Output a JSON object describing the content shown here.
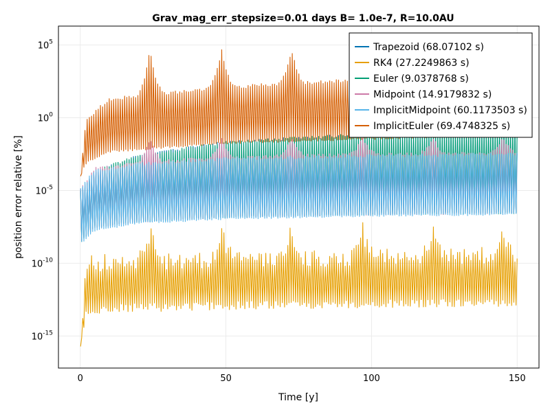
{
  "chart_data": {
    "type": "line",
    "title": "Grav_mag_err_stepsize=0.01 days B= 1.0e-7, R=10.0AU",
    "xlabel": "Time [y]",
    "ylabel": "position error relative [%]",
    "xlim": [
      -7.5,
      157.5
    ],
    "ylim_log10": [
      -17.2,
      6.3
    ],
    "yscale": "log",
    "grid": true,
    "legend_position": "top-right",
    "x_ticks": [
      {
        "value": 0,
        "label": "0"
      },
      {
        "value": 50,
        "label": "50"
      },
      {
        "value": 100,
        "label": "100"
      },
      {
        "value": 150,
        "label": "150"
      }
    ],
    "y_ticks": [
      {
        "exp": 5,
        "base": "10",
        "sup": "5"
      },
      {
        "exp": 0,
        "base": "10",
        "sup": "0"
      },
      {
        "exp": -5,
        "base": "10",
        "sup": "-5"
      },
      {
        "exp": -10,
        "base": "10",
        "sup": "-10"
      },
      {
        "exp": -15,
        "base": "10",
        "sup": "-15"
      }
    ],
    "series": [
      {
        "name": "Trapezoid (68.07102 s)",
        "color": "#0072B2",
        "envelope_x": [
          0.1,
          5,
          20,
          50,
          100,
          150
        ],
        "upper_log10": [
          -5,
          -3.6,
          -2.5,
          -1.6,
          -1.0,
          -0.7
        ],
        "lower_log10": [
          -8.6,
          -7.6,
          -7.2,
          -6.9,
          -6.7,
          -6.6
        ]
      },
      {
        "name": "RK4 (27.2249863 s)",
        "color": "#E69F00",
        "envelope_x": [
          0.1,
          2,
          10,
          50,
          100,
          150
        ],
        "upper_log10": [
          -15.5,
          -9.5,
          -9.3,
          -9.2,
          -9.0,
          -8.8
        ],
        "lower_log10": [
          -16,
          -13.8,
          -13.4,
          -13.2,
          -13.1,
          -13.0
        ],
        "peak_x": [
          24,
          48.5,
          72.5,
          97,
          121,
          145
        ],
        "peak_log10": -7.2
      },
      {
        "name": "Euler (9.0378768 s)",
        "color": "#009E73",
        "envelope_x": [
          0.1,
          5,
          20,
          50,
          100,
          150
        ],
        "upper_log10": [
          -5,
          -3.6,
          -2.5,
          -1.6,
          -1.0,
          -0.7
        ],
        "lower_log10": [
          -8.6,
          -7.6,
          -7.2,
          -6.9,
          -6.7,
          -6.6
        ]
      },
      {
        "name": "Midpoint (14.9179832 s)",
        "color": "#CC79A7",
        "envelope_x": [
          0.1,
          5,
          20,
          50,
          100,
          150
        ],
        "upper_log10": [
          -4.8,
          -3.4,
          -3.0,
          -2.6,
          -2.4,
          -2.3
        ],
        "lower_log10": [
          -8.6,
          -7.6,
          -7.2,
          -6.9,
          -6.7,
          -6.6
        ],
        "peak_x": [
          24,
          48.5,
          72.5,
          97,
          121,
          145
        ],
        "peak_log10": -1.2
      },
      {
        "name": "ImplicitMidpoint (60.1173503 s)",
        "color": "#56B4E9",
        "envelope_x": [
          0.1,
          5,
          20,
          50,
          100,
          150
        ],
        "upper_log10": [
          -4.8,
          -3.5,
          -3.1,
          -2.7,
          -2.5,
          -2.4
        ],
        "lower_log10": [
          -8.7,
          -7.8,
          -7.3,
          -7.0,
          -6.8,
          -6.7
        ]
      },
      {
        "name": "ImplicitEuler (69.4748325 s)",
        "color": "#D55E00",
        "envelope_x": [
          0.1,
          2,
          10,
          50,
          100,
          150
        ],
        "upper_log10": [
          -4.0,
          0.0,
          1.4,
          2.2,
          2.8,
          3.0
        ],
        "lower_log10": [
          -4.0,
          -3.2,
          -2.4,
          -1.8,
          -1.5,
          -1.2
        ],
        "peak_x": [
          24,
          48.5,
          72.5,
          97,
          121,
          145
        ],
        "peak_log10": 4.8
      }
    ]
  },
  "colors": {
    "background": "#ffffff",
    "grid": "#ebebeb",
    "axis_frame": "#000000",
    "legend_border": "#000000"
  }
}
